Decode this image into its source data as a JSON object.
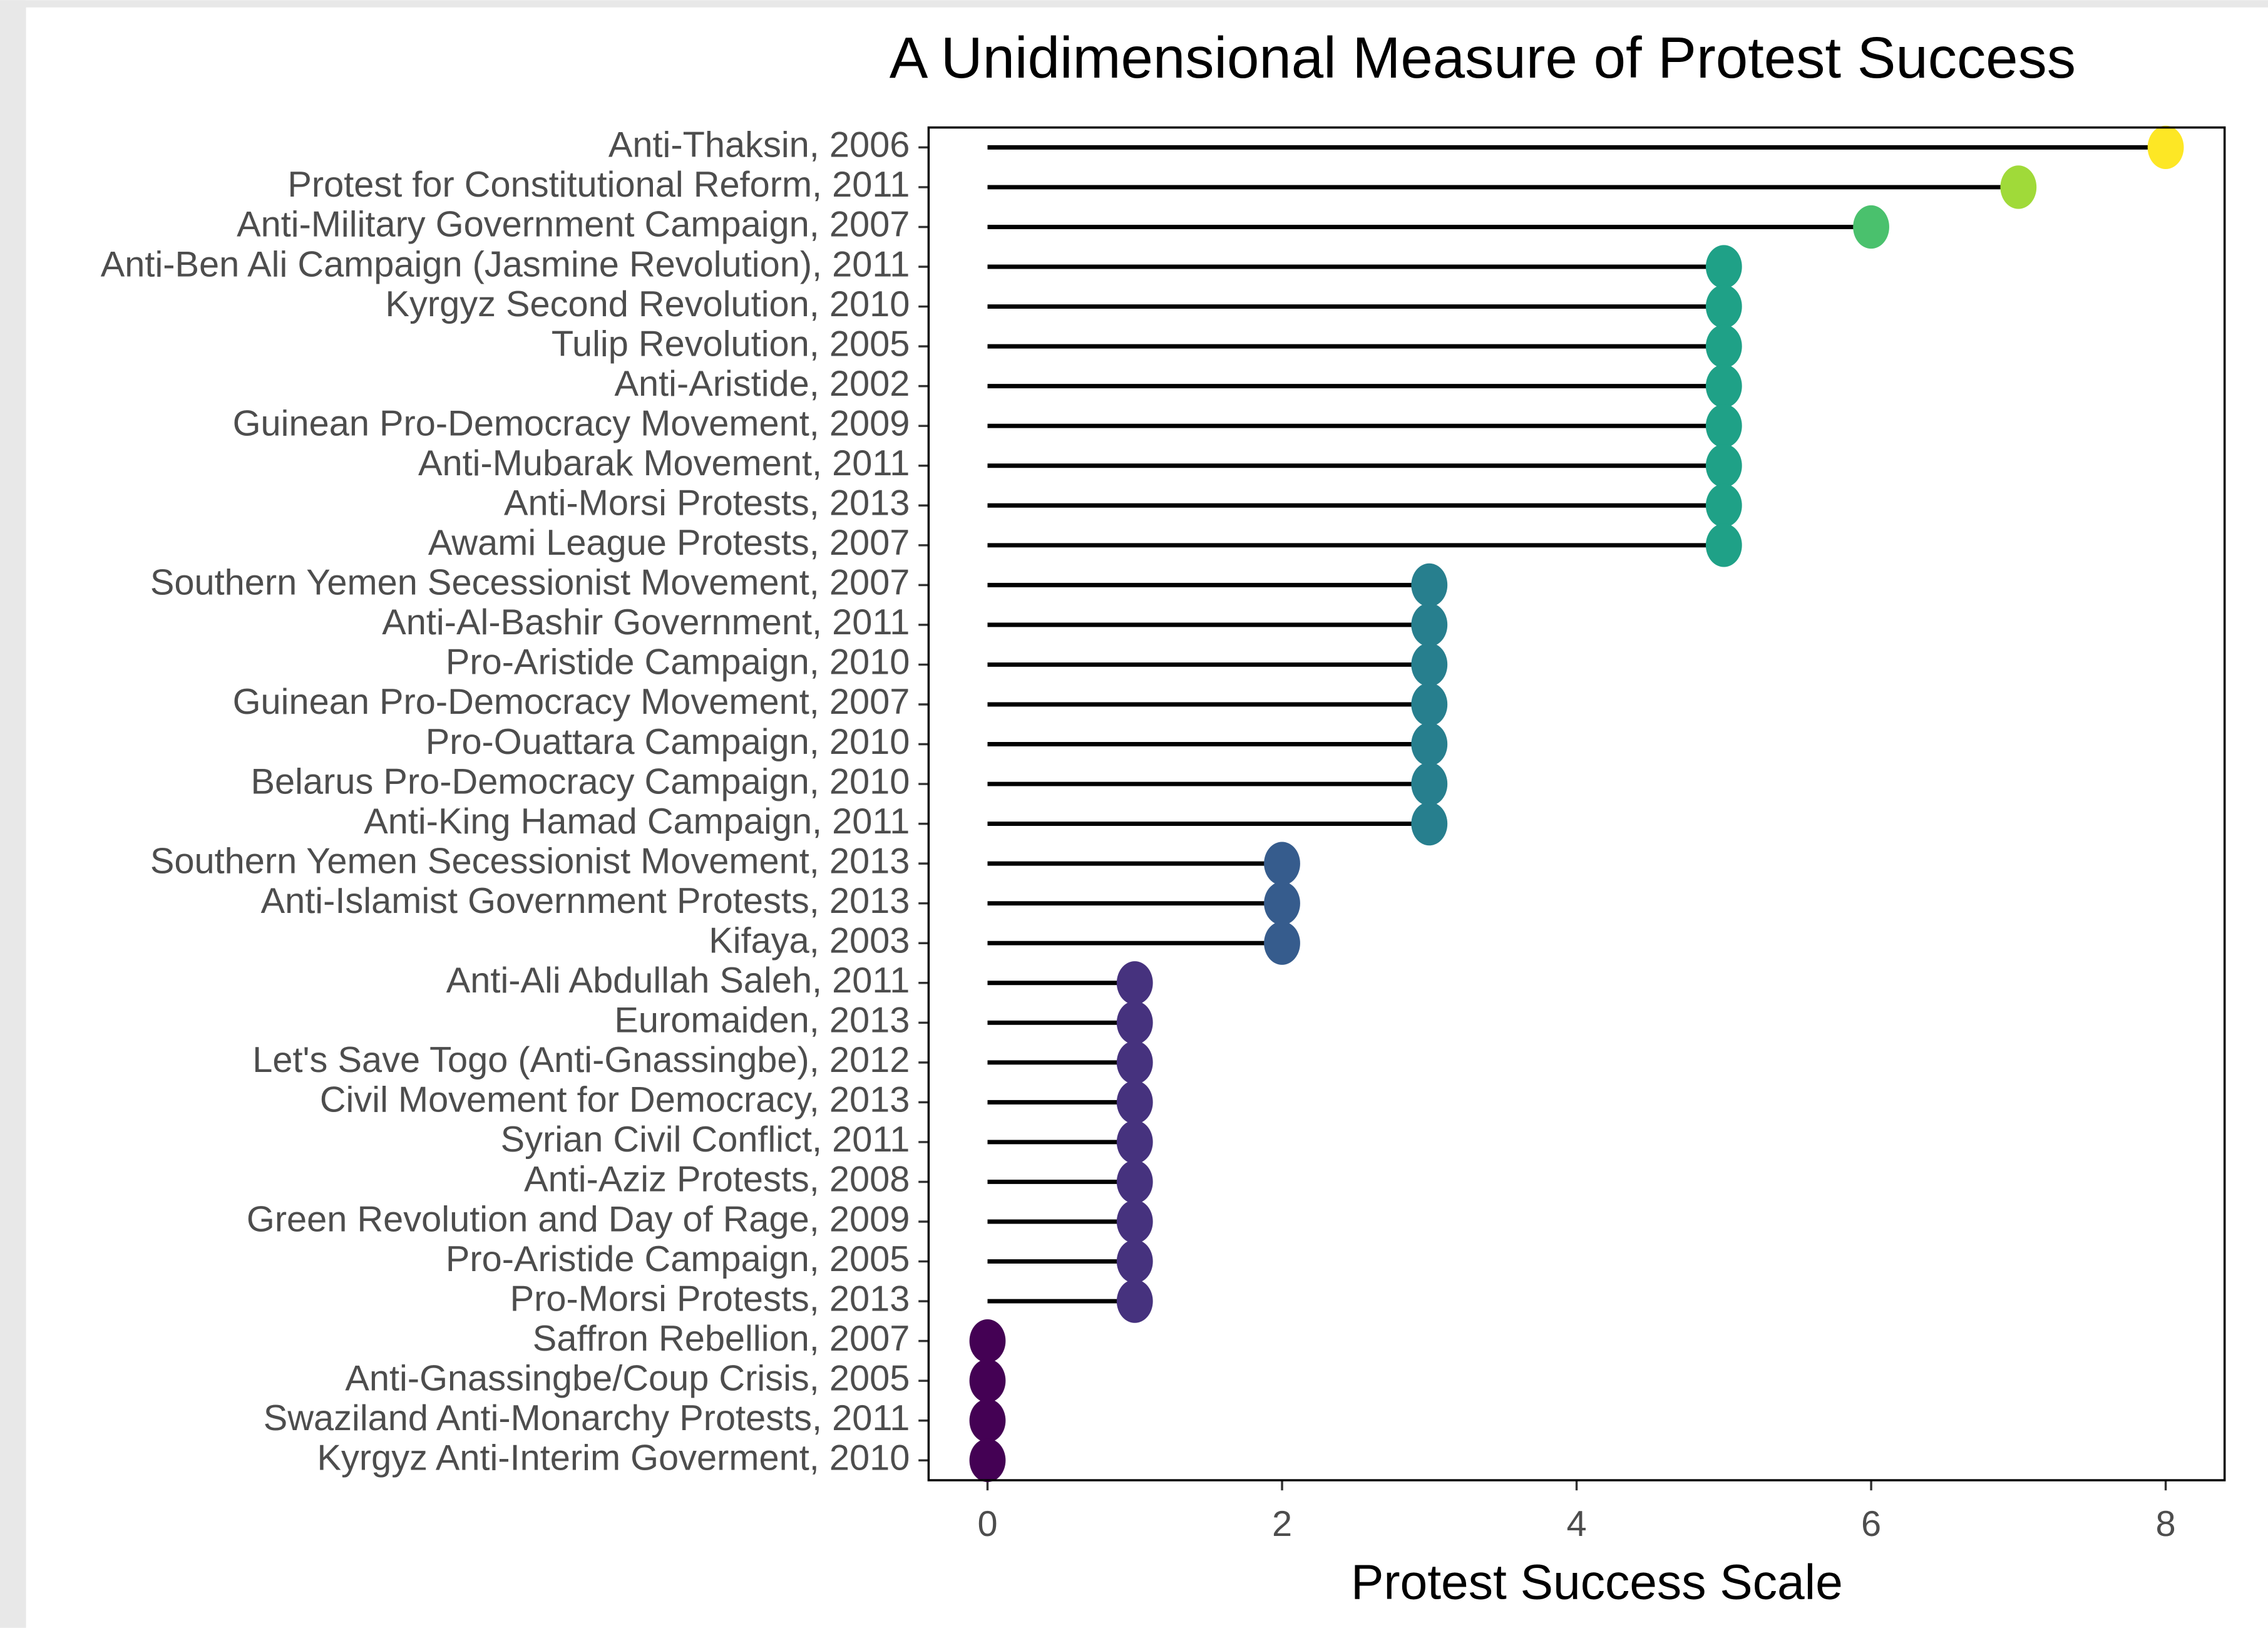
{
  "chart_data": {
    "type": "lollipop",
    "title": "A Unidimensional Measure of Protest Success",
    "x_label": "Protest Success Scale",
    "categories": [
      "Anti-Thaksin, 2006",
      "Protest for Constitutional Reform, 2011",
      "Anti-Military Government Campaign, 2007",
      "Anti-Ben Ali Campaign (Jasmine Revolution), 2011",
      "Kyrgyz Second Revolution, 2010",
      "Tulip Revolution, 2005",
      "Anti-Aristide, 2002",
      "Guinean Pro-Democracy Movement, 2009",
      "Anti-Mubarak Movement, 2011",
      "Anti-Morsi Protests, 2013",
      "Awami League Protests, 2007",
      "Southern Yemen Secessionist Movement, 2007",
      "Anti-Al-Bashir Government, 2011",
      "Pro-Aristide Campaign, 2010",
      "Guinean Pro-Democracy Movement, 2007",
      "Pro-Ouattara Campaign, 2010",
      "Belarus Pro-Democracy Campaign, 2010",
      "Anti-King Hamad Campaign, 2011",
      "Southern Yemen Secessionist Movement, 2013",
      "Anti-Islamist Government Protests, 2013",
      "Kifaya, 2003",
      "Anti-Ali Abdullah Saleh, 2011",
      "Euromaiden, 2013",
      "Let's Save Togo (Anti-Gnassingbe), 2012",
      "Civil Movement for Democracy, 2013",
      "Syrian Civil Conflict, 2011",
      "Anti-Aziz Protests, 2008",
      "Green Revolution and Day of Rage, 2009",
      "Pro-Aristide Campaign, 2005",
      "Pro-Morsi Protests, 2013",
      "Saffron Rebellion, 2007",
      "Anti-Gnassingbe/Coup Crisis, 2005",
      "Swaziland Anti-Monarchy Protests, 2011",
      "Kyrgyz Anti-Interim Goverment, 2010"
    ],
    "values": [
      8,
      7,
      6,
      5,
      5,
      5,
      5,
      5,
      5,
      5,
      5,
      3,
      3,
      3,
      3,
      3,
      3,
      3,
      2,
      2,
      2,
      1,
      1,
      1,
      1,
      1,
      1,
      1,
      1,
      1,
      0,
      0,
      0,
      0
    ],
    "colors": [
      "#fde725",
      "#a0da39",
      "#4ac16d",
      "#1fa187",
      "#1fa187",
      "#1fa187",
      "#1fa187",
      "#1fa187",
      "#1fa187",
      "#1fa187",
      "#1fa187",
      "#277f8e",
      "#277f8e",
      "#277f8e",
      "#277f8e",
      "#277f8e",
      "#277f8e",
      "#277f8e",
      "#365c8d",
      "#365c8d",
      "#365c8d",
      "#46327e",
      "#46327e",
      "#46327e",
      "#46327e",
      "#46327e",
      "#46327e",
      "#46327e",
      "#46327e",
      "#46327e",
      "#440154",
      "#440154",
      "#440154",
      "#440154"
    ],
    "stem_color": "#000000",
    "xlim": [
      -0.4,
      8.4
    ],
    "xticks": [
      0,
      2,
      4,
      6,
      8
    ],
    "grid": false
  }
}
